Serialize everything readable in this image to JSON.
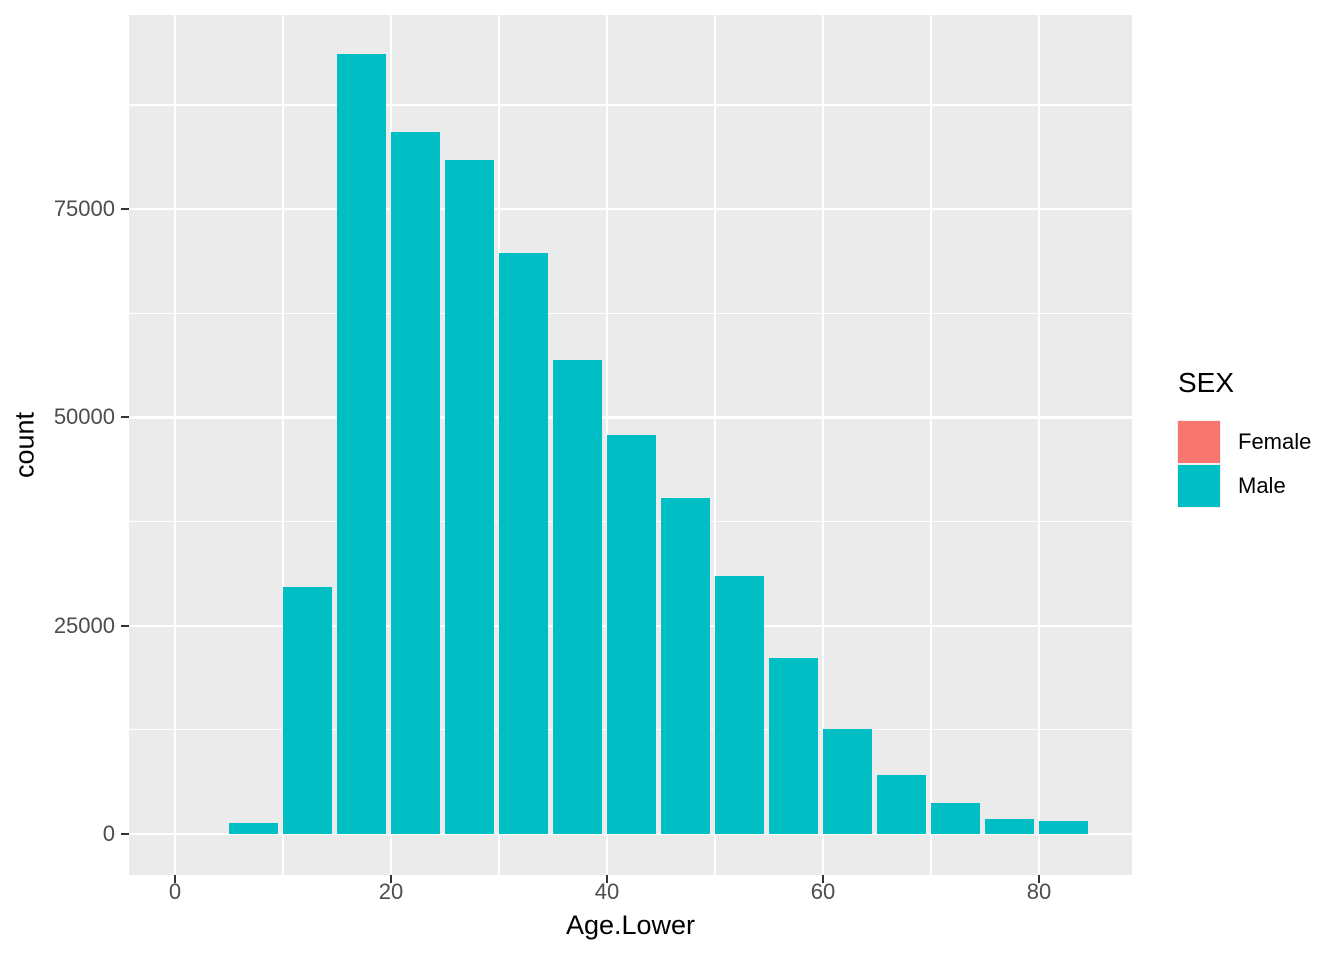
{
  "chart_data": {
    "type": "bar",
    "subtype": "histogram",
    "title": "",
    "xlabel": "Age.Lower",
    "ylabel": "count",
    "x_ticks": [
      0,
      20,
      40,
      60,
      80
    ],
    "x_minor_ticks": [
      10,
      30,
      50,
      70,
      90
    ],
    "y_ticks": [
      0,
      25000,
      50000,
      75000
    ],
    "y_minor_ticks": [
      12500,
      37500,
      62500,
      87500
    ],
    "xlim": [
      -4.3,
      88.6
    ],
    "ylim": [
      -6100,
      98300
    ],
    "grid": true,
    "bin_width": 5,
    "bar_width": 4.5,
    "bars": [
      {
        "x": 5,
        "count": 1300
      },
      {
        "x": 10,
        "count": 29600
      },
      {
        "x": 15,
        "count": 93600
      },
      {
        "x": 20,
        "count": 84200
      },
      {
        "x": 25,
        "count": 80900
      },
      {
        "x": 30,
        "count": 69700
      },
      {
        "x": 35,
        "count": 56900
      },
      {
        "x": 40,
        "count": 47900
      },
      {
        "x": 45,
        "count": 40300
      },
      {
        "x": 50,
        "count": 31000
      },
      {
        "x": 55,
        "count": 21100
      },
      {
        "x": 60,
        "count": 12600
      },
      {
        "x": 65,
        "count": 7100
      },
      {
        "x": 70,
        "count": 3700
      },
      {
        "x": 75,
        "count": 1800
      },
      {
        "x": 80,
        "count": 1600
      }
    ],
    "series": [
      {
        "name": "Male",
        "color": "#00BFC4"
      }
    ],
    "legend": {
      "title": "SEX",
      "position": "right",
      "entries": [
        {
          "label": "Female",
          "color": "#F8766D"
        },
        {
          "label": "Male",
          "color": "#00BFC4"
        }
      ]
    },
    "colors": {
      "panel_bg": "#EBEBEB",
      "grid": "#FFFFFF",
      "bar_fill": "#00BFC4",
      "tick_label": "#4D4D4D",
      "axis_title": "#000000",
      "tick_mark": "#333333",
      "background": "#FFFFFF"
    }
  }
}
